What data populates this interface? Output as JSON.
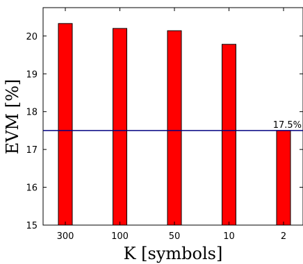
{
  "chart_data": {
    "type": "bar",
    "categories": [
      "300",
      "100",
      "50",
      "10",
      "2"
    ],
    "values": [
      20.33,
      20.2,
      20.14,
      19.78,
      17.5
    ],
    "xlabel": "K [symbols]",
    "ylabel": "EVM [%]",
    "ylim": [
      15,
      20.75
    ],
    "yticks": [
      15,
      16,
      17,
      18,
      19,
      20
    ],
    "grid": false,
    "bar_color": "#ff0000",
    "bar_edge_color": "#000000",
    "reference_line": {
      "value": 17.5,
      "label": "17.5%",
      "color": "#000080"
    }
  }
}
